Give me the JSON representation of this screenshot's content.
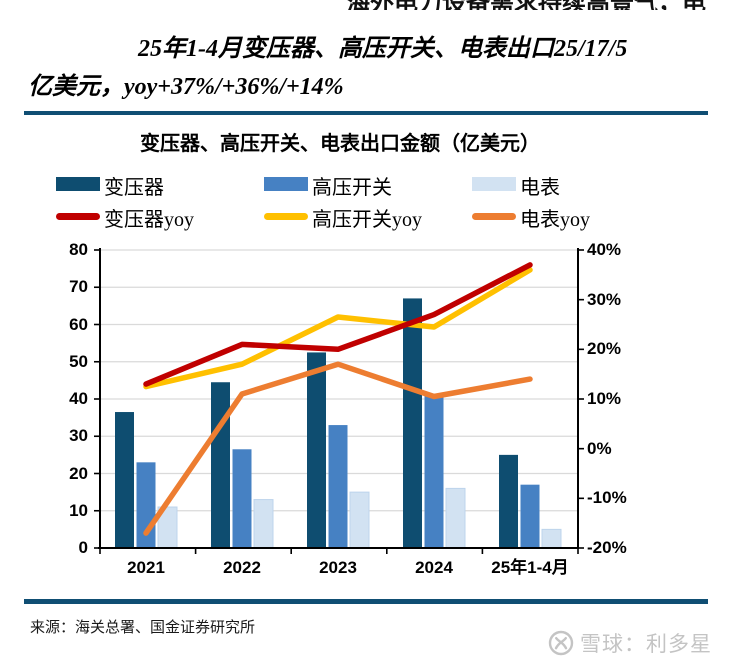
{
  "top_clipped_text": "海外电力设备需求持续高景气，电",
  "heading": {
    "line1": "25年1-4月变压器、高压开关、电表出口25/17/5",
    "line2": "亿美元，yoy+37%/+36%/+14%"
  },
  "chart_data": {
    "type": "bar",
    "title": "变压器、高压开关、电表出口金额（亿美元）",
    "categories": [
      "2021",
      "2022",
      "2023",
      "2024",
      "25年1-4月"
    ],
    "bar_series": [
      {
        "name": "变压器",
        "color": "#0E4D70",
        "values": [
          36.5,
          44.5,
          52.5,
          67,
          25
        ]
      },
      {
        "name": "高压开关",
        "color": "#4681C3",
        "values": [
          23,
          26.5,
          33,
          41,
          17
        ]
      },
      {
        "name": "电表",
        "color": "#D2E2F2",
        "values": [
          11,
          13,
          15,
          16,
          5
        ]
      }
    ],
    "line_series": [
      {
        "name": "电表yoy",
        "color": "#ED7D31",
        "values": [
          -17,
          11,
          17,
          10.5,
          14
        ]
      },
      {
        "name": "高压开关yoy",
        "color": "#FFC000",
        "values": [
          12.5,
          17,
          26.5,
          24.5,
          36
        ]
      },
      {
        "name": "变压器yoy",
        "color": "#C00000",
        "values": [
          13,
          21,
          20,
          27,
          37
        ]
      }
    ],
    "left_axis": {
      "min": 0,
      "max": 80,
      "step": 10,
      "tick_labels": [
        "80",
        "70",
        "60",
        "50",
        "40",
        "30",
        "20",
        "10",
        "0"
      ]
    },
    "right_axis": {
      "min": -20,
      "max": 40,
      "step": 10,
      "tick_labels": [
        "40%",
        "30%",
        "20%",
        "10%",
        "0%",
        "-10%",
        "-20%"
      ]
    },
    "grid": true,
    "legend_position": "top"
  },
  "legend": {
    "items": [
      {
        "label": "变压器",
        "type": "bar",
        "color": "#0E4D70",
        "row": 0,
        "col": 0
      },
      {
        "label": "高压开关",
        "type": "bar",
        "color": "#4681C3",
        "row": 0,
        "col": 1
      },
      {
        "label": "电表",
        "type": "bar",
        "color": "#D2E2F2",
        "row": 0,
        "col": 2
      },
      {
        "label": "变压器yoy",
        "type": "line",
        "color": "#C00000",
        "row": 1,
        "col": 0
      },
      {
        "label": "高压开关yoy",
        "type": "line",
        "color": "#FFC000",
        "row": 1,
        "col": 1
      },
      {
        "label": "电表yoy",
        "type": "line",
        "color": "#ED7D31",
        "row": 1,
        "col": 2
      }
    ]
  },
  "source": {
    "text": "来源：海关总署、国金证券研究所"
  },
  "watermark": {
    "text": "雪球：利多星",
    "logo": "xueqiu-circle-x-icon",
    "color": "#C4C4C4"
  },
  "colors": {
    "rule": "#0F4E73",
    "grid": "#DADADA",
    "axis": "#000000"
  }
}
